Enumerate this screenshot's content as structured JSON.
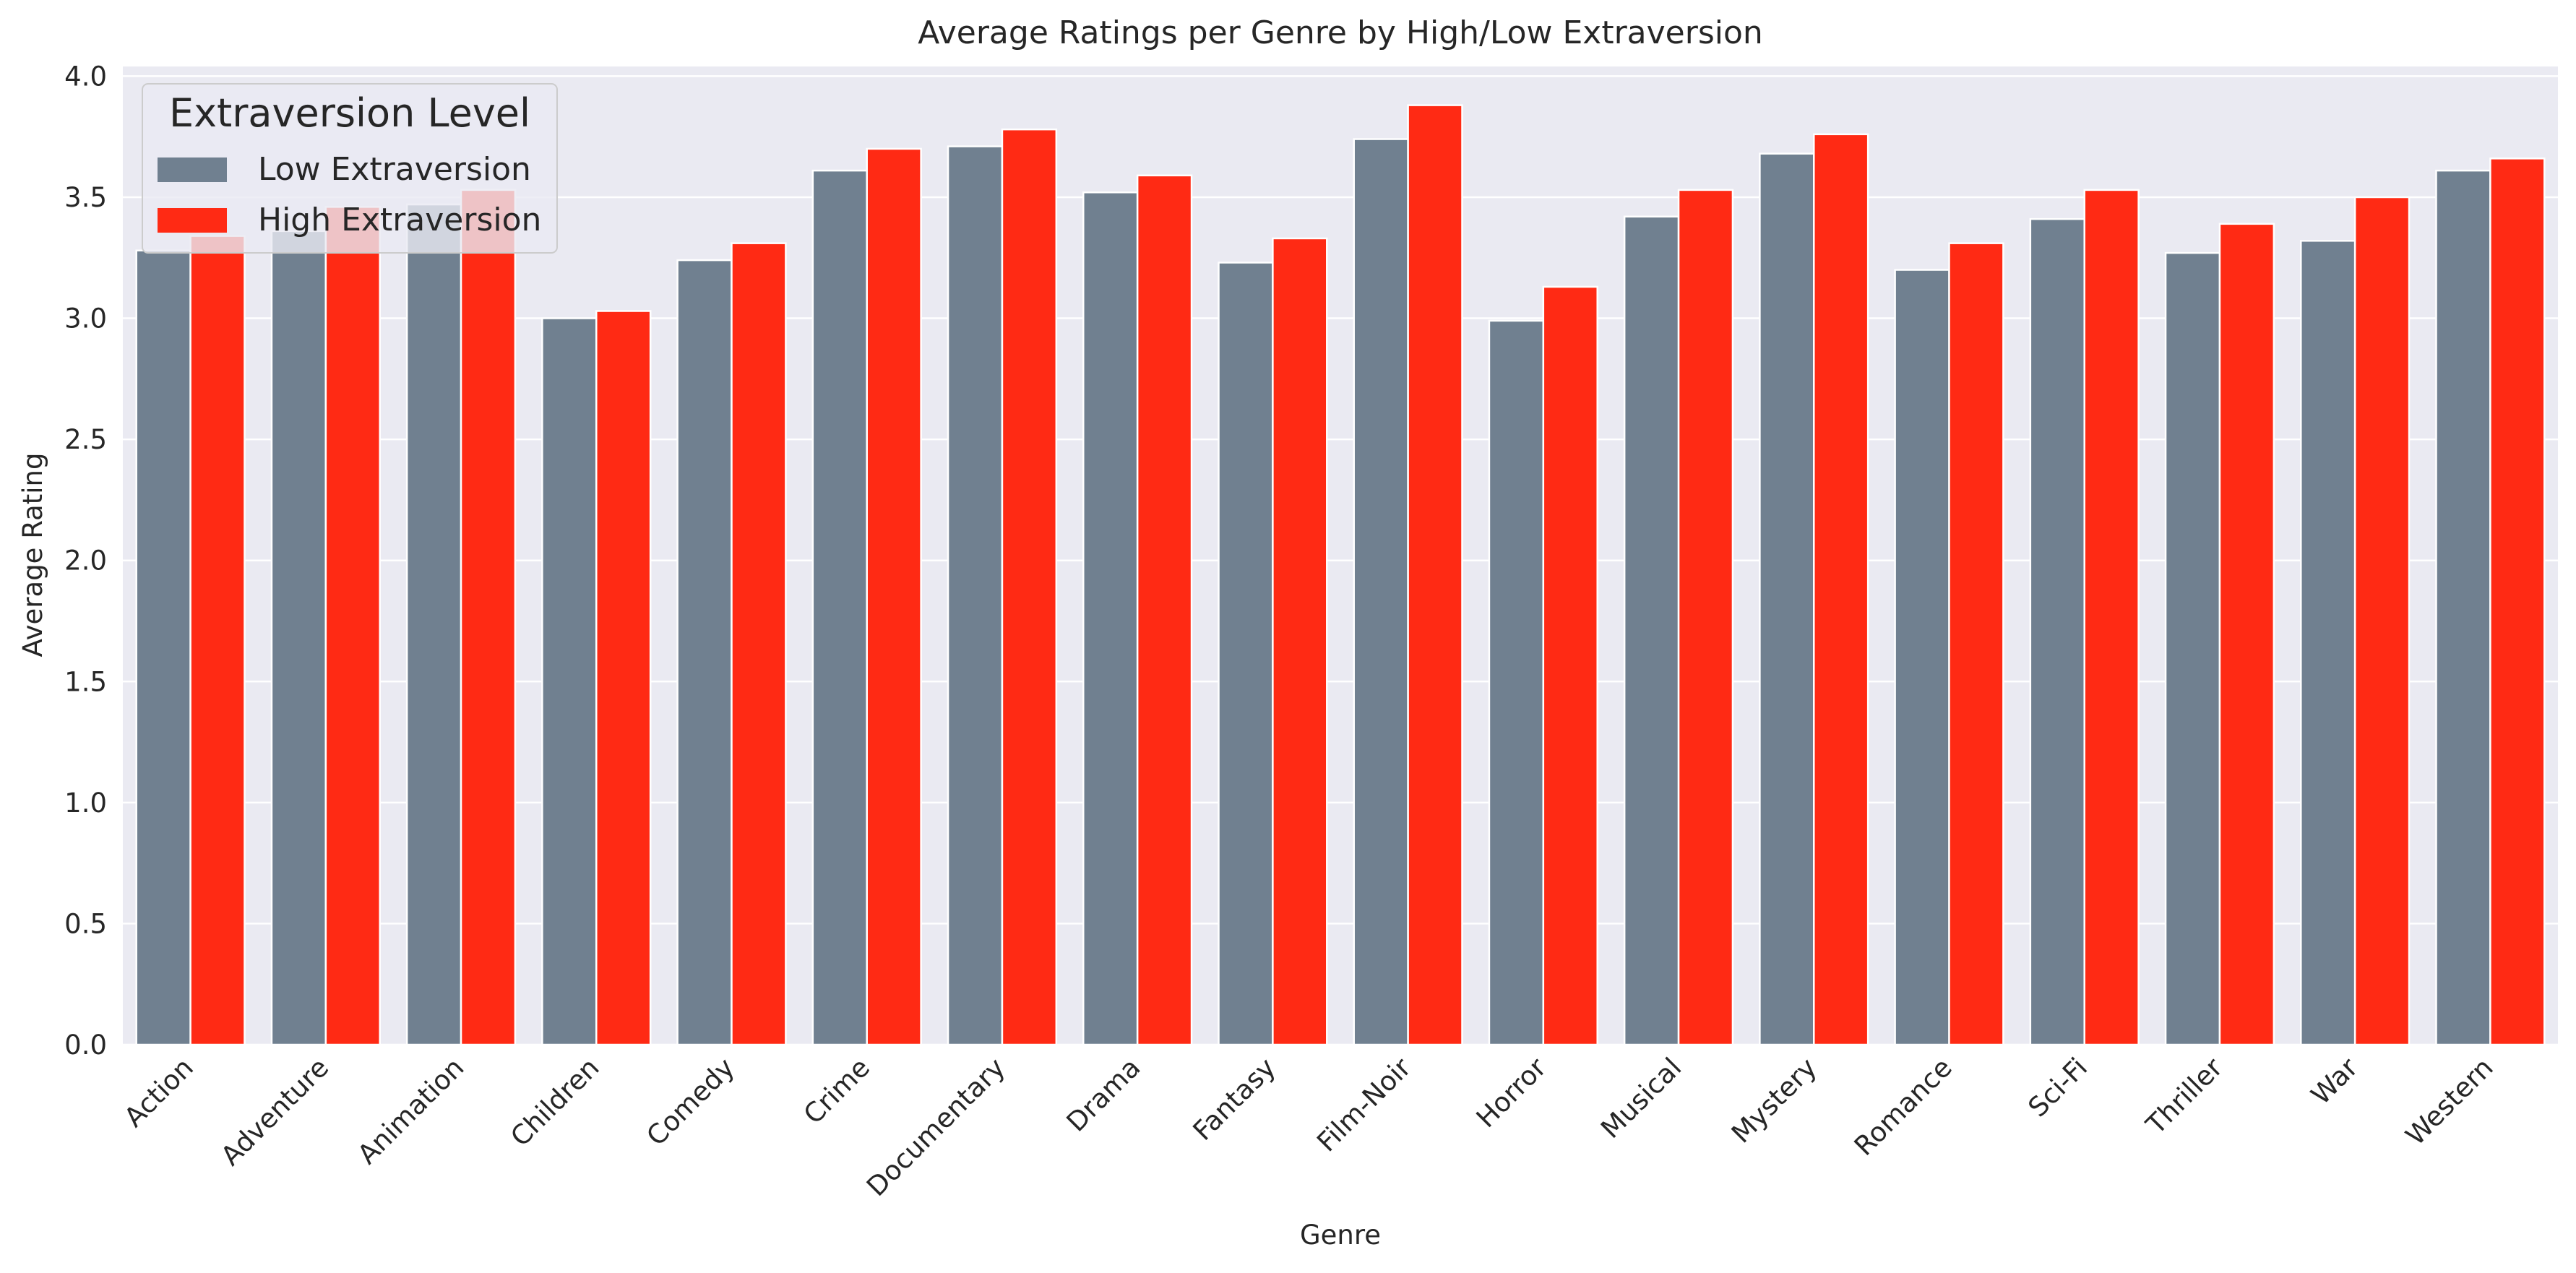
{
  "chart_data": {
    "type": "bar",
    "title": "Average Ratings per Genre by High/Low Extraversion",
    "xlabel": "Genre",
    "ylabel": "Average Rating",
    "ylim": [
      0,
      4.04
    ],
    "yticks": [
      0.0,
      0.5,
      1.0,
      1.5,
      2.0,
      2.5,
      3.0,
      3.5,
      4.0
    ],
    "ytick_labels": [
      "0.0",
      "0.5",
      "1.0",
      "1.5",
      "2.0",
      "2.5",
      "3.0",
      "3.5",
      "4.0"
    ],
    "grid": true,
    "categories": [
      "Action",
      "Adventure",
      "Animation",
      "Children",
      "Comedy",
      "Crime",
      "Documentary",
      "Drama",
      "Fantasy",
      "Film-Noir",
      "Horror",
      "Musical",
      "Mystery",
      "Romance",
      "Sci-Fi",
      "Thriller",
      "War",
      "Western"
    ],
    "series": [
      {
        "name": "Low Extraversion",
        "color": "#708090",
        "values": [
          3.28,
          3.36,
          3.47,
          3.0,
          3.24,
          3.61,
          3.71,
          3.52,
          3.23,
          3.74,
          2.99,
          3.42,
          3.68,
          3.2,
          3.41,
          3.27,
          3.32,
          3.61
        ]
      },
      {
        "name": "High Extraversion",
        "color": "#ff2a14",
        "values": [
          3.34,
          3.46,
          3.53,
          3.03,
          3.31,
          3.7,
          3.78,
          3.59,
          3.33,
          3.88,
          3.13,
          3.53,
          3.76,
          3.31,
          3.53,
          3.39,
          3.5,
          3.66
        ]
      }
    ],
    "legend": {
      "title": "Extraversion Level",
      "placement": "upper-left"
    }
  }
}
